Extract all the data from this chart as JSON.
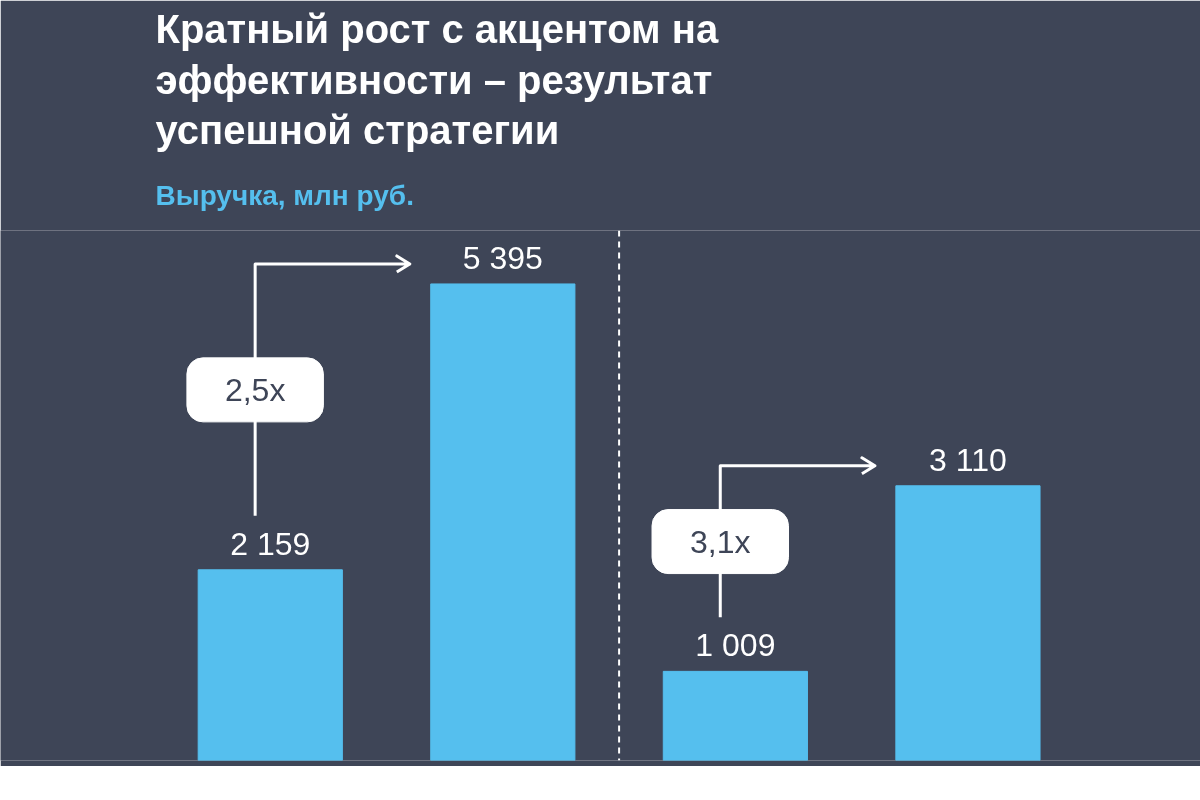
{
  "chart_data": {
    "type": "bar",
    "title": "Кратный рост с акцентом на эффективности – результат успешной стратегии",
    "subtitle": "Выручка, млн руб.",
    "categories": [
      null,
      null,
      null,
      null
    ],
    "values": [
      2159,
      5395,
      1009,
      3110
    ],
    "value_labels": [
      "2 159",
      "5 395",
      "1 009",
      "3 110"
    ],
    "color": "#55bfee",
    "ylim": [
      0,
      6000
    ],
    "tick_labels": false,
    "annotations": [
      "2,5x",
      "3,1x"
    ]
  }
}
